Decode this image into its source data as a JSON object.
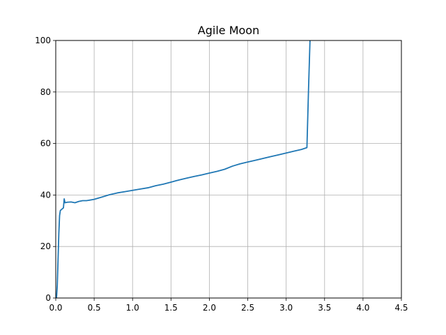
{
  "chart_data": {
    "type": "line",
    "title": "Agile Moon",
    "xlabel": "",
    "ylabel": "",
    "xlim": [
      0,
      4.5
    ],
    "ylim": [
      0,
      100
    ],
    "grid": true,
    "x_ticks": [
      0.0,
      0.5,
      1.0,
      1.5,
      2.0,
      2.5,
      3.0,
      3.5,
      4.0,
      4.5
    ],
    "y_ticks": [
      0,
      20,
      40,
      60,
      80,
      100
    ],
    "x_tick_labels": [
      "0.0",
      "0.5",
      "1.0",
      "1.5",
      "2.0",
      "2.5",
      "3.0",
      "3.5",
      "4.0",
      "4.5"
    ],
    "y_tick_labels": [
      "0",
      "20",
      "40",
      "60",
      "80",
      "100"
    ],
    "line_color": "#1f77b4",
    "series": [
      {
        "points": [
          [
            0.01,
            0
          ],
          [
            0.02,
            5
          ],
          [
            0.03,
            15
          ],
          [
            0.04,
            25
          ],
          [
            0.05,
            32
          ],
          [
            0.06,
            34
          ],
          [
            0.08,
            34.5
          ],
          [
            0.1,
            35
          ],
          [
            0.11,
            38.5
          ],
          [
            0.12,
            37
          ],
          [
            0.15,
            37.2
          ],
          [
            0.2,
            37.3
          ],
          [
            0.25,
            37
          ],
          [
            0.3,
            37.5
          ],
          [
            0.35,
            37.8
          ],
          [
            0.4,
            37.8
          ],
          [
            0.5,
            38.3
          ],
          [
            0.6,
            39.2
          ],
          [
            0.7,
            40.1
          ],
          [
            0.8,
            40.8
          ],
          [
            0.9,
            41.3
          ],
          [
            1.0,
            41.8
          ],
          [
            1.1,
            42.3
          ],
          [
            1.2,
            42.8
          ],
          [
            1.3,
            43.6
          ],
          [
            1.4,
            44.2
          ],
          [
            1.5,
            45.0
          ],
          [
            1.6,
            45.8
          ],
          [
            1.7,
            46.5
          ],
          [
            1.8,
            47.2
          ],
          [
            1.9,
            47.8
          ],
          [
            2.0,
            48.5
          ],
          [
            2.1,
            49.2
          ],
          [
            2.2,
            50.0
          ],
          [
            2.3,
            51.2
          ],
          [
            2.4,
            52.1
          ],
          [
            2.5,
            52.8
          ],
          [
            2.6,
            53.5
          ],
          [
            2.7,
            54.2
          ],
          [
            2.8,
            54.9
          ],
          [
            2.9,
            55.6
          ],
          [
            3.0,
            56.3
          ],
          [
            3.1,
            57.0
          ],
          [
            3.2,
            57.7
          ],
          [
            3.27,
            58.4
          ],
          [
            3.29,
            80
          ],
          [
            3.31,
            100
          ]
        ]
      }
    ]
  }
}
